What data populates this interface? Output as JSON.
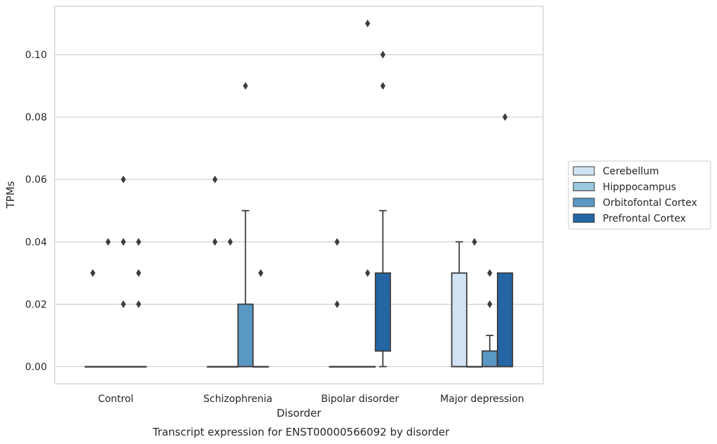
{
  "chart_data": {
    "type": "boxplot",
    "title": "",
    "caption": "Transcript expression for ENST00000566092 by disorder",
    "xlabel": "Disorder",
    "ylabel": "TPMs",
    "ylim": [
      -0.0055,
      0.1155
    ],
    "yticks": [
      0.0,
      0.02,
      0.04,
      0.06,
      0.08,
      0.1
    ],
    "ytick_labels": [
      "0.00",
      "0.02",
      "0.04",
      "0.06",
      "0.08",
      "0.10"
    ],
    "grid": "horizontal",
    "legend_position": "right",
    "categories": [
      "Control",
      "Schizophrenia",
      "Bipolar disorder",
      "Major depression"
    ],
    "series": [
      {
        "name": "Cerebellum",
        "color": "#d2e3f3",
        "boxes": [
          {
            "q1": 0,
            "median": 0,
            "q3": 0,
            "whisker_low": 0,
            "whisker_high": 0,
            "outliers": [
              0.03
            ]
          },
          {
            "q1": 0,
            "median": 0,
            "q3": 0,
            "whisker_low": 0,
            "whisker_high": 0,
            "outliers": [
              0.06,
              0.04
            ]
          },
          {
            "q1": 0,
            "median": 0,
            "q3": 0,
            "whisker_low": 0,
            "whisker_high": 0,
            "outliers": [
              0.04,
              0.02
            ]
          },
          {
            "q1": 0,
            "median": 0,
            "q3": 0.03,
            "whisker_low": 0,
            "whisker_high": 0.04,
            "outliers": []
          }
        ]
      },
      {
        "name": "Hipppocampus",
        "color": "#9ac8e0",
        "boxes": [
          {
            "q1": 0,
            "median": 0,
            "q3": 0,
            "whisker_low": 0,
            "whisker_high": 0,
            "outliers": [
              0.04
            ]
          },
          {
            "q1": 0,
            "median": 0,
            "q3": 0,
            "whisker_low": 0,
            "whisker_high": 0,
            "outliers": [
              0.04
            ]
          },
          {
            "q1": 0,
            "median": 0,
            "q3": 0,
            "whisker_low": 0,
            "whisker_high": 0,
            "outliers": []
          },
          {
            "q1": 0,
            "median": 0,
            "q3": 0,
            "whisker_low": 0,
            "whisker_high": 0,
            "outliers": [
              0.04
            ]
          }
        ]
      },
      {
        "name": "Orbitofontal Cortex",
        "color": "#5a98c4",
        "boxes": [
          {
            "q1": 0,
            "median": 0,
            "q3": 0,
            "whisker_low": 0,
            "whisker_high": 0,
            "outliers": [
              0.06,
              0.04,
              0.02
            ]
          },
          {
            "q1": 0,
            "median": 0,
            "q3": 0.02,
            "whisker_low": 0,
            "whisker_high": 0.05,
            "outliers": [
              0.09
            ]
          },
          {
            "q1": 0,
            "median": 0,
            "q3": 0,
            "whisker_low": 0,
            "whisker_high": 0,
            "outliers": [
              0.11,
              0.03
            ]
          },
          {
            "q1": 0,
            "median": 0,
            "q3": 0.005,
            "whisker_low": 0,
            "whisker_high": 0.01,
            "outliers": [
              0.03,
              0.02
            ]
          }
        ]
      },
      {
        "name": "Prefrontal Cortex",
        "color": "#2465a4",
        "boxes": [
          {
            "q1": 0,
            "median": 0,
            "q3": 0,
            "whisker_low": 0,
            "whisker_high": 0,
            "outliers": [
              0.04,
              0.03,
              0.02
            ]
          },
          {
            "q1": 0,
            "median": 0,
            "q3": 0,
            "whisker_low": 0,
            "whisker_high": 0,
            "outliers": [
              0.03
            ]
          },
          {
            "q1": 0.005,
            "median": 0.03,
            "q3": 0.03,
            "whisker_low": 0,
            "whisker_high": 0.05,
            "outliers": [
              0.1,
              0.09
            ]
          },
          {
            "q1": 0,
            "median": 0,
            "q3": 0.03,
            "whisker_low": 0,
            "whisker_high": 0.03,
            "outliers": [
              0.08
            ]
          }
        ]
      }
    ]
  }
}
